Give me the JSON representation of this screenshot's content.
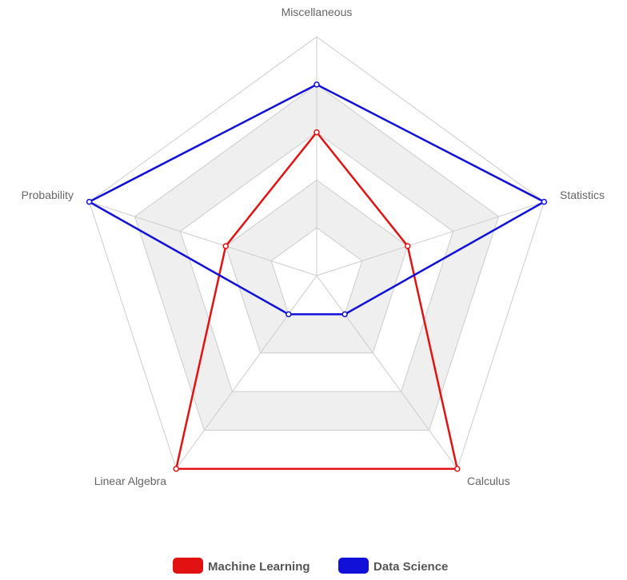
{
  "chart_data": {
    "type": "radar",
    "title": "",
    "axes": [
      "Miscellaneous",
      "Statistics",
      "Calculus",
      "Linear Algebra",
      "Probability"
    ],
    "range": [
      0,
      5
    ],
    "grid_levels": [
      1,
      2,
      3,
      4,
      5
    ],
    "grid_bands": "alternating gray fill",
    "series": [
      {
        "name": "Machine Learning",
        "color": "#e31212",
        "values": [
          3,
          2,
          5,
          5,
          2
        ]
      },
      {
        "name": "Data Science",
        "color": "#1010d8",
        "values": [
          4,
          5,
          1,
          1,
          5
        ]
      }
    ],
    "legend_position": "bottom"
  }
}
